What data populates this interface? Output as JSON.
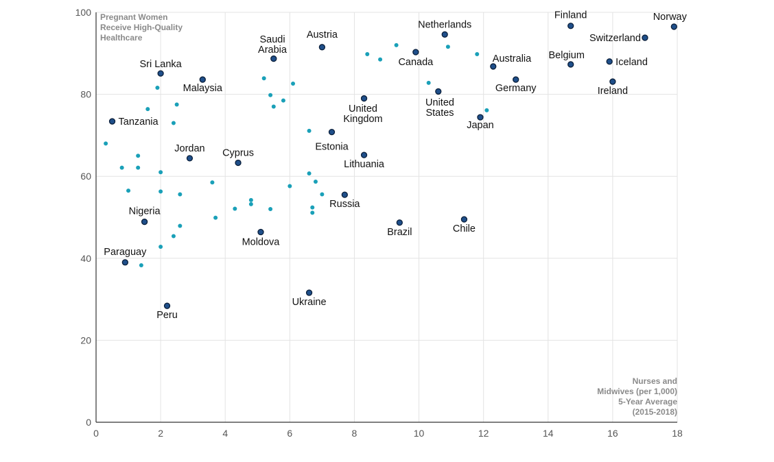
{
  "chart_data": {
    "type": "scatter",
    "y_axis_note": [
      "Pregnant Women",
      "Receive High-Quality",
      "Healthcare"
    ],
    "x_axis_note": [
      "Nurses and",
      "Midwives (per 1,000)",
      "5-Year Average",
      "(2015-2018)"
    ],
    "xlim": [
      0,
      18
    ],
    "ylim": [
      0,
      100
    ],
    "x_ticks": [
      0,
      2,
      4,
      6,
      8,
      10,
      12,
      14,
      16,
      18
    ],
    "y_ticks": [
      0,
      20,
      40,
      60,
      80,
      100
    ],
    "grid": true,
    "colors": {
      "highlight_fill": "#1f4f8a",
      "highlight_stroke": "#0b1f3a",
      "other_fill": "#1aa0b8",
      "grid": "#e3e3e3",
      "axis": "#333333"
    },
    "labeled_points": [
      {
        "name": "Norway",
        "x": 17.9,
        "y": 96.5
      },
      {
        "name": "Finland",
        "x": 14.7,
        "y": 96.7
      },
      {
        "name": "Switzerland",
        "x": 17.0,
        "y": 93.8
      },
      {
        "name": "Netherlands",
        "x": 10.8,
        "y": 94.6
      },
      {
        "name": "Austria",
        "x": 7.0,
        "y": 91.5
      },
      {
        "name": "Saudi Arabia",
        "x": 5.5,
        "y": 88.7
      },
      {
        "name": "Canada",
        "x": 9.9,
        "y": 90.3
      },
      {
        "name": "Iceland",
        "x": 15.9,
        "y": 88.0
      },
      {
        "name": "Belgium",
        "x": 14.7,
        "y": 87.3
      },
      {
        "name": "Australia",
        "x": 12.3,
        "y": 86.8
      },
      {
        "name": "Sri Lanka",
        "x": 2.0,
        "y": 85.1
      },
      {
        "name": "Malaysia",
        "x": 3.3,
        "y": 83.6
      },
      {
        "name": "Germany",
        "x": 13.0,
        "y": 83.6
      },
      {
        "name": "Ireland",
        "x": 16.0,
        "y": 83.1
      },
      {
        "name": "United States",
        "x": 10.6,
        "y": 80.7
      },
      {
        "name": "United Kingdom",
        "x": 8.3,
        "y": 79.0
      },
      {
        "name": "Japan",
        "x": 11.9,
        "y": 74.4
      },
      {
        "name": "Tanzania",
        "x": 0.5,
        "y": 73.4
      },
      {
        "name": "Estonia",
        "x": 7.3,
        "y": 70.8
      },
      {
        "name": "Lithuania",
        "x": 8.3,
        "y": 65.2
      },
      {
        "name": "Jordan",
        "x": 2.9,
        "y": 64.4
      },
      {
        "name": "Cyprus",
        "x": 4.4,
        "y": 63.3
      },
      {
        "name": "Russia",
        "x": 7.7,
        "y": 55.5
      },
      {
        "name": "Chile",
        "x": 11.4,
        "y": 49.5
      },
      {
        "name": "Nigeria",
        "x": 1.5,
        "y": 48.9
      },
      {
        "name": "Brazil",
        "x": 9.4,
        "y": 48.7
      },
      {
        "name": "Moldova",
        "x": 5.1,
        "y": 46.4
      },
      {
        "name": "Paraguay",
        "x": 0.9,
        "y": 39.0
      },
      {
        "name": "Ukraine",
        "x": 6.6,
        "y": 31.6
      },
      {
        "name": "Peru",
        "x": 2.2,
        "y": 28.4
      }
    ],
    "other_points": [
      {
        "x": 0.3,
        "y": 68.0
      },
      {
        "x": 0.8,
        "y": 62.1
      },
      {
        "x": 1.0,
        "y": 56.5
      },
      {
        "x": 1.3,
        "y": 65.0
      },
      {
        "x": 1.3,
        "y": 62.1
      },
      {
        "x": 1.4,
        "y": 38.3
      },
      {
        "x": 1.6,
        "y": 76.4
      },
      {
        "x": 1.9,
        "y": 81.6
      },
      {
        "x": 2.0,
        "y": 61.0
      },
      {
        "x": 2.0,
        "y": 56.3
      },
      {
        "x": 2.0,
        "y": 42.8
      },
      {
        "x": 2.4,
        "y": 73.0
      },
      {
        "x": 2.5,
        "y": 77.5
      },
      {
        "x": 2.4,
        "y": 45.4
      },
      {
        "x": 2.6,
        "y": 55.6
      },
      {
        "x": 2.6,
        "y": 47.9
      },
      {
        "x": 3.6,
        "y": 58.5
      },
      {
        "x": 3.7,
        "y": 49.9
      },
      {
        "x": 4.3,
        "y": 52.1
      },
      {
        "x": 4.8,
        "y": 54.2
      },
      {
        "x": 4.8,
        "y": 53.2
      },
      {
        "x": 5.2,
        "y": 83.9
      },
      {
        "x": 5.4,
        "y": 79.8
      },
      {
        "x": 5.5,
        "y": 77.0
      },
      {
        "x": 5.4,
        "y": 52.0
      },
      {
        "x": 5.8,
        "y": 78.5
      },
      {
        "x": 6.1,
        "y": 82.6
      },
      {
        "x": 6.0,
        "y": 57.6
      },
      {
        "x": 6.6,
        "y": 71.1
      },
      {
        "x": 6.6,
        "y": 60.7
      },
      {
        "x": 6.8,
        "y": 58.7
      },
      {
        "x": 6.7,
        "y": 52.4
      },
      {
        "x": 6.7,
        "y": 51.1
      },
      {
        "x": 7.0,
        "y": 55.6
      },
      {
        "x": 8.4,
        "y": 89.8
      },
      {
        "x": 8.8,
        "y": 88.5
      },
      {
        "x": 9.3,
        "y": 92.0
      },
      {
        "x": 10.3,
        "y": 82.8
      },
      {
        "x": 10.9,
        "y": 91.6
      },
      {
        "x": 11.8,
        "y": 89.8
      },
      {
        "x": 12.1,
        "y": 76.1
      }
    ]
  }
}
